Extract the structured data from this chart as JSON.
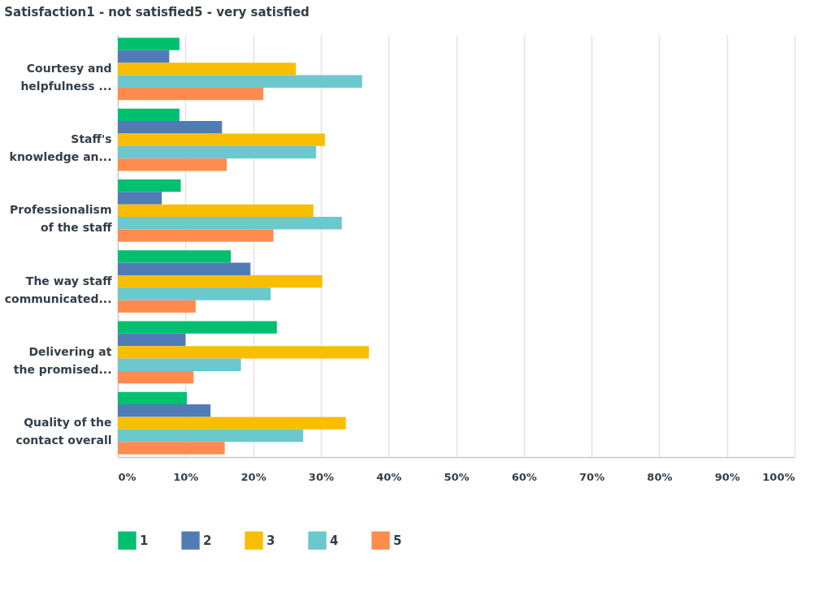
{
  "chart_data": {
    "type": "bar",
    "orientation": "horizontal",
    "title": "Satisfaction1 - not satisfied5 - very satisfied",
    "categories": [
      "Courtesy and helpfulness ...",
      "Staff's knowledge an...",
      "Professionalism of the staff",
      "The way staff communicated...",
      "Delivering at the promised...",
      "Quality of the contact overall"
    ],
    "series": [
      {
        "name": "1",
        "color": "#00bf6f",
        "values": [
          9.1,
          9.1,
          9.3,
          16.7,
          23.5,
          10.2
        ]
      },
      {
        "name": "2",
        "color": "#507cb6",
        "values": [
          7.6,
          15.4,
          6.5,
          19.6,
          10.0,
          13.7
        ]
      },
      {
        "name": "3",
        "color": "#f9be00",
        "values": [
          26.3,
          30.6,
          28.9,
          30.2,
          37.1,
          33.7
        ]
      },
      {
        "name": "4",
        "color": "#6bc8cd",
        "values": [
          36.1,
          29.3,
          33.1,
          22.6,
          18.2,
          27.4
        ]
      },
      {
        "name": "5",
        "color": "#ff8b4f",
        "values": [
          21.5,
          16.1,
          23.0,
          11.5,
          11.2,
          15.8
        ]
      }
    ],
    "xlim": [
      0,
      100
    ],
    "xticks": [
      {
        "value": 0,
        "label": "0%"
      },
      {
        "value": 10,
        "label": "10%"
      },
      {
        "value": 20,
        "label": "20%"
      },
      {
        "value": 30,
        "label": "30%"
      },
      {
        "value": 40,
        "label": "40%"
      },
      {
        "value": 50,
        "label": "50%"
      },
      {
        "value": 60,
        "label": "60%"
      },
      {
        "value": 70,
        "label": "70%"
      },
      {
        "value": 80,
        "label": "80%"
      },
      {
        "value": 90,
        "label": "90%"
      },
      {
        "value": 100,
        "label": "100%"
      }
    ],
    "grid": "x",
    "legend": "bottom"
  }
}
